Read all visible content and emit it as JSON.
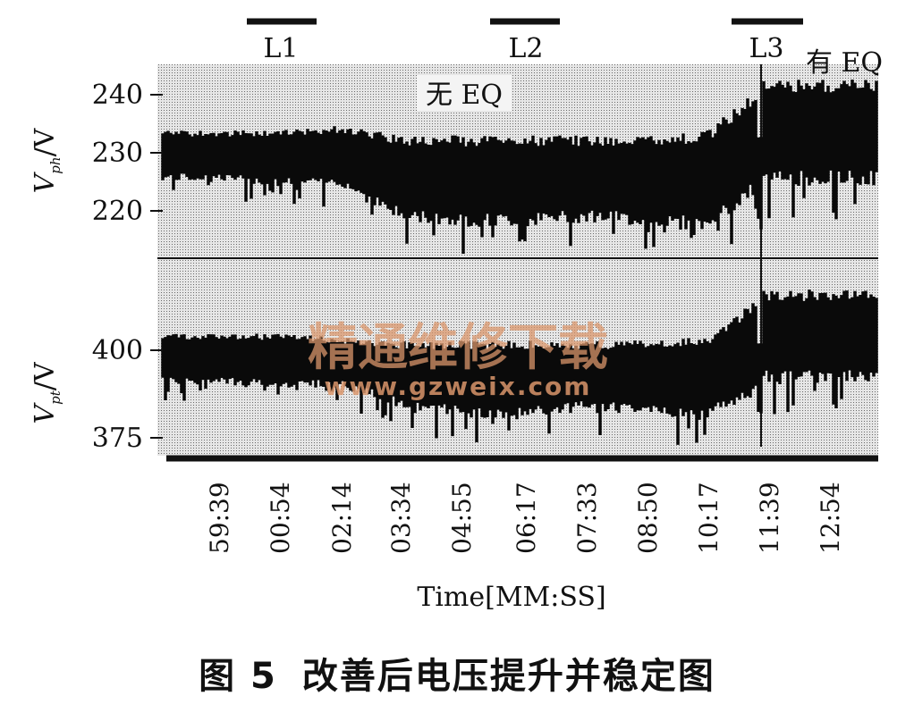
{
  "colors": {
    "ink": "#0a0a0a",
    "plot_bg": "#c9c9c9",
    "watermark": "#d9956b"
  },
  "load_markers": [
    "L1",
    "L2",
    "L3"
  ],
  "annotations": {
    "without_eq": "无 EQ",
    "with_eq": "有 EQ"
  },
  "watermark": {
    "line1": "精通维修下载",
    "line2": "www.gzweix.com"
  },
  "caption": {
    "figure_no": "图 5",
    "text": "改善后电压提升并稳定图"
  },
  "chart_data": [
    {
      "type": "area",
      "ylabel": "V_ph/V",
      "ylabel_main": "V",
      "ylabel_sub": "ph",
      "ylabel_unit": "/V",
      "yticks": [
        220,
        230,
        240
      ],
      "ylim": [
        208,
        246
      ],
      "grid": false,
      "x": [
        "59:39",
        "00:54",
        "02:14",
        "03:34",
        "04:55",
        "06:17",
        "07:33",
        "08:50",
        "10:17",
        "11:39",
        "12:54"
      ],
      "series": [
        {
          "upper": [
            233,
            233,
            234,
            232,
            232,
            232,
            232,
            232,
            233,
            243,
            243
          ],
          "lower": [
            223,
            222,
            222,
            215,
            214,
            214,
            215,
            214,
            213,
            222,
            222
          ]
        }
      ]
    },
    {
      "type": "area",
      "ylabel": "V_pt/V",
      "ylabel_main": "V",
      "ylabel_sub": "pt",
      "ylabel_unit": "/V",
      "yticks": [
        375,
        400
      ],
      "ylim": [
        370,
        428
      ],
      "grid": false,
      "x": [
        "59:39",
        "00:54",
        "02:14",
        "03:34",
        "04:55",
        "06:17",
        "07:33",
        "08:50",
        "10:17",
        "11:39",
        "12:54"
      ],
      "series": [
        {
          "upper": [
            406,
            406,
            405,
            404,
            404,
            404,
            404,
            404,
            405,
            419,
            419
          ],
          "lower": [
            391,
            390,
            390,
            384,
            381,
            381,
            383,
            382,
            380,
            391,
            391
          ]
        }
      ]
    }
  ],
  "xlabel": "Time[MM:SS]"
}
